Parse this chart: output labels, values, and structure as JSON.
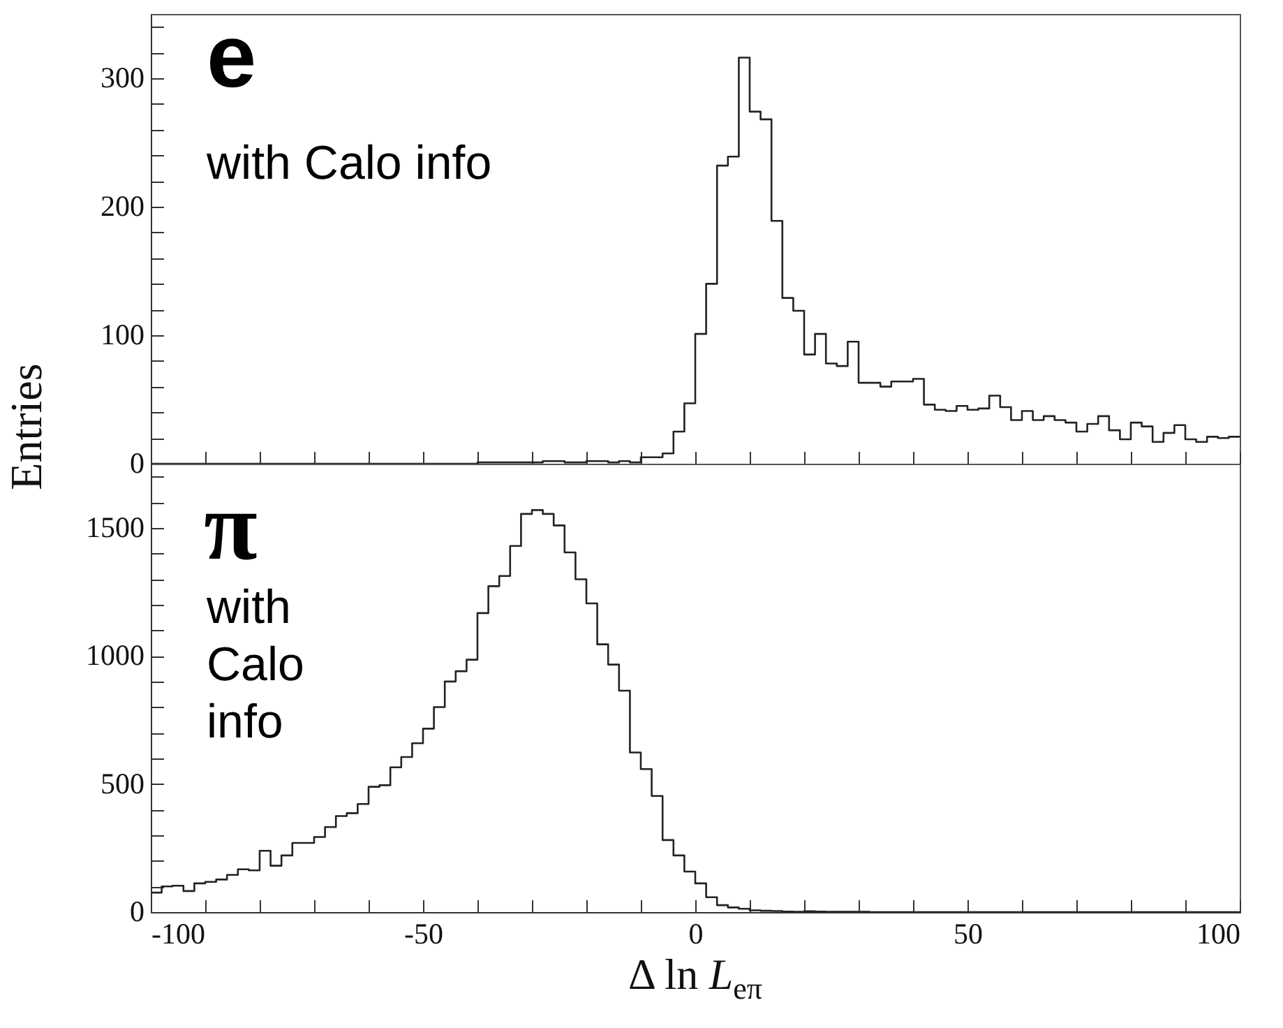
{
  "chart_data": [
    {
      "type": "histogram",
      "color": "#222222",
      "annotations": [
        "e",
        "with Calo info"
      ],
      "tick_labels": "y",
      "bins": [
        -100,
        -98,
        -96,
        -94,
        -92,
        -90,
        -88,
        -86,
        -84,
        -82,
        -80,
        -78,
        -76,
        -74,
        -72,
        -70,
        -68,
        -66,
        -64,
        -62,
        -60,
        -58,
        -56,
        -54,
        -52,
        -50,
        -48,
        -46,
        -44,
        -42,
        -40,
        -38,
        -36,
        -34,
        -32,
        -30,
        -28,
        -26,
        -24,
        -22,
        -20,
        -18,
        -16,
        -14,
        -12,
        -10,
        -8,
        -6,
        -4,
        -2,
        0,
        2,
        4,
        6,
        8,
        10,
        12,
        14,
        16,
        18,
        20,
        22,
        24,
        26,
        28,
        30,
        32,
        34,
        36,
        38,
        40,
        42,
        44,
        46,
        48,
        50,
        52,
        54,
        56,
        58,
        60,
        62,
        64,
        66,
        68,
        70,
        72,
        74,
        76,
        78,
        80,
        82,
        84,
        86,
        88,
        90,
        92,
        94,
        96,
        98,
        100
      ],
      "values": [
        0,
        0,
        0,
        0,
        0,
        0,
        0,
        0,
        0,
        0,
        0,
        0,
        0,
        0,
        0,
        0,
        0,
        0,
        0,
        0,
        0,
        0,
        0,
        0,
        0,
        0,
        0,
        0,
        0,
        0,
        1,
        1,
        1,
        1,
        1,
        1,
        2,
        2,
        1,
        1,
        2,
        2,
        1,
        2,
        1,
        5,
        5,
        8,
        25,
        47,
        101,
        140,
        232,
        239,
        316,
        274,
        268,
        189,
        129,
        119,
        85,
        101,
        78,
        76,
        95,
        63,
        63,
        60,
        64,
        64,
        66,
        46,
        42,
        41,
        45,
        42,
        43,
        53,
        44,
        34,
        41,
        34,
        37,
        34,
        32,
        25,
        31,
        37,
        26,
        19,
        32,
        29,
        17,
        24,
        30,
        19,
        17,
        21,
        20,
        21
      ],
      "xlim": [
        -100,
        100
      ],
      "xticks": [
        -100,
        {
          "value": -90,
          "label": null
        },
        {
          "value": -80,
          "label": null
        },
        {
          "value": -70,
          "label": null
        },
        {
          "value": -60,
          "label": null
        },
        -50,
        {
          "value": -40,
          "label": null
        },
        {
          "value": -30,
          "label": null
        },
        {
          "value": -20,
          "label": null
        },
        {
          "value": -10,
          "label": null
        },
        0,
        {
          "value": 10,
          "label": null
        },
        {
          "value": 20,
          "label": null
        },
        {
          "value": 30,
          "label": null
        },
        {
          "value": 40,
          "label": null
        },
        50,
        {
          "value": 60,
          "label": null
        },
        {
          "value": 70,
          "label": null
        },
        {
          "value": 80,
          "label": null
        },
        {
          "value": 90,
          "label": null
        },
        100
      ],
      "ylim": [
        0,
        350
      ],
      "yticks": [
        0,
        {
          "value": 20,
          "label": null
        },
        {
          "value": 40,
          "label": null
        },
        {
          "value": 60,
          "label": null
        },
        {
          "value": 80,
          "label": null
        },
        100,
        {
          "value": 120,
          "label": null
        },
        {
          "value": 140,
          "label": null
        },
        {
          "value": 160,
          "label": null
        },
        {
          "value": 180,
          "label": null
        },
        200,
        {
          "value": 220,
          "label": null
        },
        {
          "value": 240,
          "label": null
        },
        {
          "value": 260,
          "label": null
        },
        {
          "value": 280,
          "label": null
        },
        300,
        {
          "value": 320,
          "label": null
        },
        {
          "value": 340,
          "label": null
        }
      ]
    },
    {
      "type": "histogram",
      "color": "#222222",
      "annotations": [
        "π",
        "with Calo info"
      ],
      "xlabel": "Δ ln L$_{eπ}$",
      "ylabel": "Entries",
      "bins": [
        -100,
        -98,
        -96,
        -94,
        -92,
        -90,
        -88,
        -86,
        -84,
        -82,
        -80,
        -78,
        -76,
        -74,
        -72,
        -70,
        -68,
        -66,
        -64,
        -62,
        -60,
        -58,
        -56,
        -54,
        -52,
        -50,
        -48,
        -46,
        -44,
        -42,
        -40,
        -38,
        -36,
        -34,
        -32,
        -30,
        -28,
        -26,
        -24,
        -22,
        -20,
        -18,
        -16,
        -14,
        -12,
        -10,
        -8,
        -6,
        -4,
        -2,
        0,
        2,
        4,
        6,
        8,
        10,
        12,
        14,
        16,
        18,
        20,
        22,
        24,
        26,
        28,
        30,
        32,
        34,
        36,
        38,
        40,
        42,
        44,
        46,
        48,
        50,
        52,
        54,
        56,
        58,
        60,
        62,
        64,
        66,
        68,
        70,
        72,
        74,
        76,
        78,
        80,
        82,
        84,
        86,
        88,
        90,
        92,
        94,
        96,
        98,
        100
      ],
      "values": [
        76,
        100,
        103,
        82,
        112,
        118,
        127,
        145,
        167,
        163,
        239,
        181,
        221,
        270,
        270,
        293,
        332,
        375,
        386,
        422,
        489,
        495,
        565,
        605,
        659,
        716,
        800,
        900,
        940,
        985,
        1167,
        1272,
        1312,
        1429,
        1554,
        1569,
        1554,
        1509,
        1404,
        1299,
        1205,
        1045,
        966,
        864,
        623,
        558,
        453,
        281,
        221,
        158,
        112,
        58,
        27,
        18,
        13,
        7,
        5,
        4,
        2,
        1,
        3,
        2,
        1,
        1,
        1,
        1,
        0,
        0,
        0,
        0,
        0,
        0,
        0,
        0,
        0,
        0,
        0,
        0,
        0,
        0,
        0,
        0,
        0,
        0,
        0,
        0,
        0,
        0,
        0,
        0,
        0,
        0,
        0,
        0,
        0,
        0,
        0,
        0,
        0,
        0
      ],
      "xlim": [
        -100,
        100
      ],
      "xticks": [
        -100,
        {
          "value": -90,
          "label": null
        },
        {
          "value": -80,
          "label": null
        },
        {
          "value": -70,
          "label": null
        },
        {
          "value": -60,
          "label": null
        },
        -50,
        {
          "value": -40,
          "label": null
        },
        {
          "value": -30,
          "label": null
        },
        {
          "value": -20,
          "label": null
        },
        {
          "value": -10,
          "label": null
        },
        0,
        {
          "value": 10,
          "label": null
        },
        {
          "value": 20,
          "label": null
        },
        {
          "value": 30,
          "label": null
        },
        {
          "value": 40,
          "label": null
        },
        50,
        {
          "value": 60,
          "label": null
        },
        {
          "value": 70,
          "label": null
        },
        {
          "value": 80,
          "label": null
        },
        {
          "value": 90,
          "label": null
        },
        100
      ],
      "ylim": [
        0,
        1750
      ],
      "yticks": [
        0,
        {
          "value": 100,
          "label": null
        },
        {
          "value": 200,
          "label": null
        },
        {
          "value": 300,
          "label": null
        },
        {
          "value": 400,
          "label": null
        },
        500,
        {
          "value": 600,
          "label": null
        },
        {
          "value": 700,
          "label": null
        },
        {
          "value": 800,
          "label": null
        },
        {
          "value": 900,
          "label": null
        },
        1000,
        {
          "value": 1100,
          "label": null
        },
        {
          "value": 1200,
          "label": null
        },
        {
          "value": 1300,
          "label": null
        },
        {
          "value": 1400,
          "label": null
        },
        1500,
        {
          "value": 1600,
          "label": null
        },
        {
          "value": 1700,
          "label": null
        }
      ]
    }
  ]
}
